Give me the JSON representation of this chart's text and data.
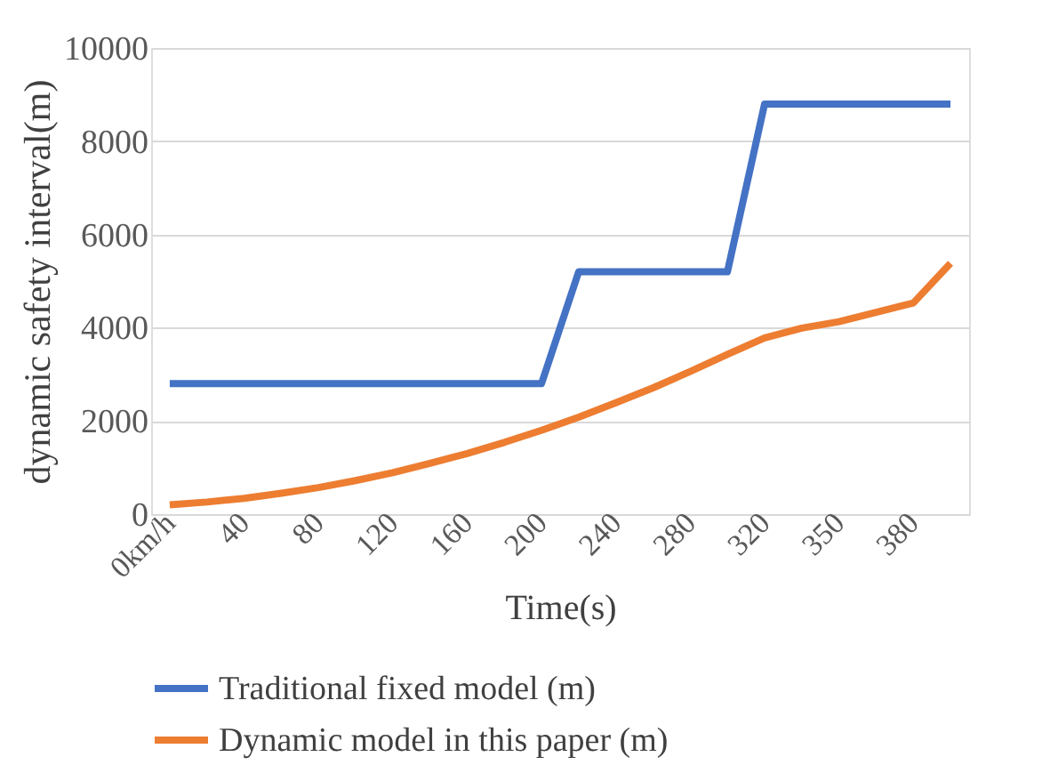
{
  "chart_data": {
    "type": "line",
    "xlabel": "Time(s)",
    "ylabel": "dynamic safety interval(m)",
    "categories": [
      "0km/h",
      null,
      "40",
      null,
      "80",
      null,
      "120",
      null,
      "160",
      null,
      "200",
      null,
      "240",
      null,
      "280",
      null,
      "320",
      null,
      "350",
      null,
      "380",
      null
    ],
    "series": [
      {
        "name": "Traditional fixed model (m)",
        "color": "#4472c4",
        "values": [
          2800,
          2800,
          2800,
          2800,
          2800,
          2800,
          2800,
          2800,
          2800,
          2800,
          2800,
          5200,
          5200,
          5200,
          5200,
          5200,
          8800,
          8800,
          8800,
          8800,
          8800,
          8800
        ]
      },
      {
        "name": "Dynamic model in this paper (m)",
        "color": "#ed7d31",
        "values": [
          200,
          260,
          340,
          450,
          570,
          720,
          890,
          1090,
          1300,
          1540,
          1800,
          2080,
          2390,
          2710,
          3060,
          3430,
          3780,
          3990,
          4130,
          4330,
          4530,
          5380
        ]
      }
    ],
    "ylim": [
      0,
      10000
    ],
    "yticks": [
      0,
      2000,
      4000,
      6000,
      8000,
      10000
    ],
    "grid": "y",
    "legend": "bottom",
    "marker": "none",
    "line_style": "solid"
  }
}
